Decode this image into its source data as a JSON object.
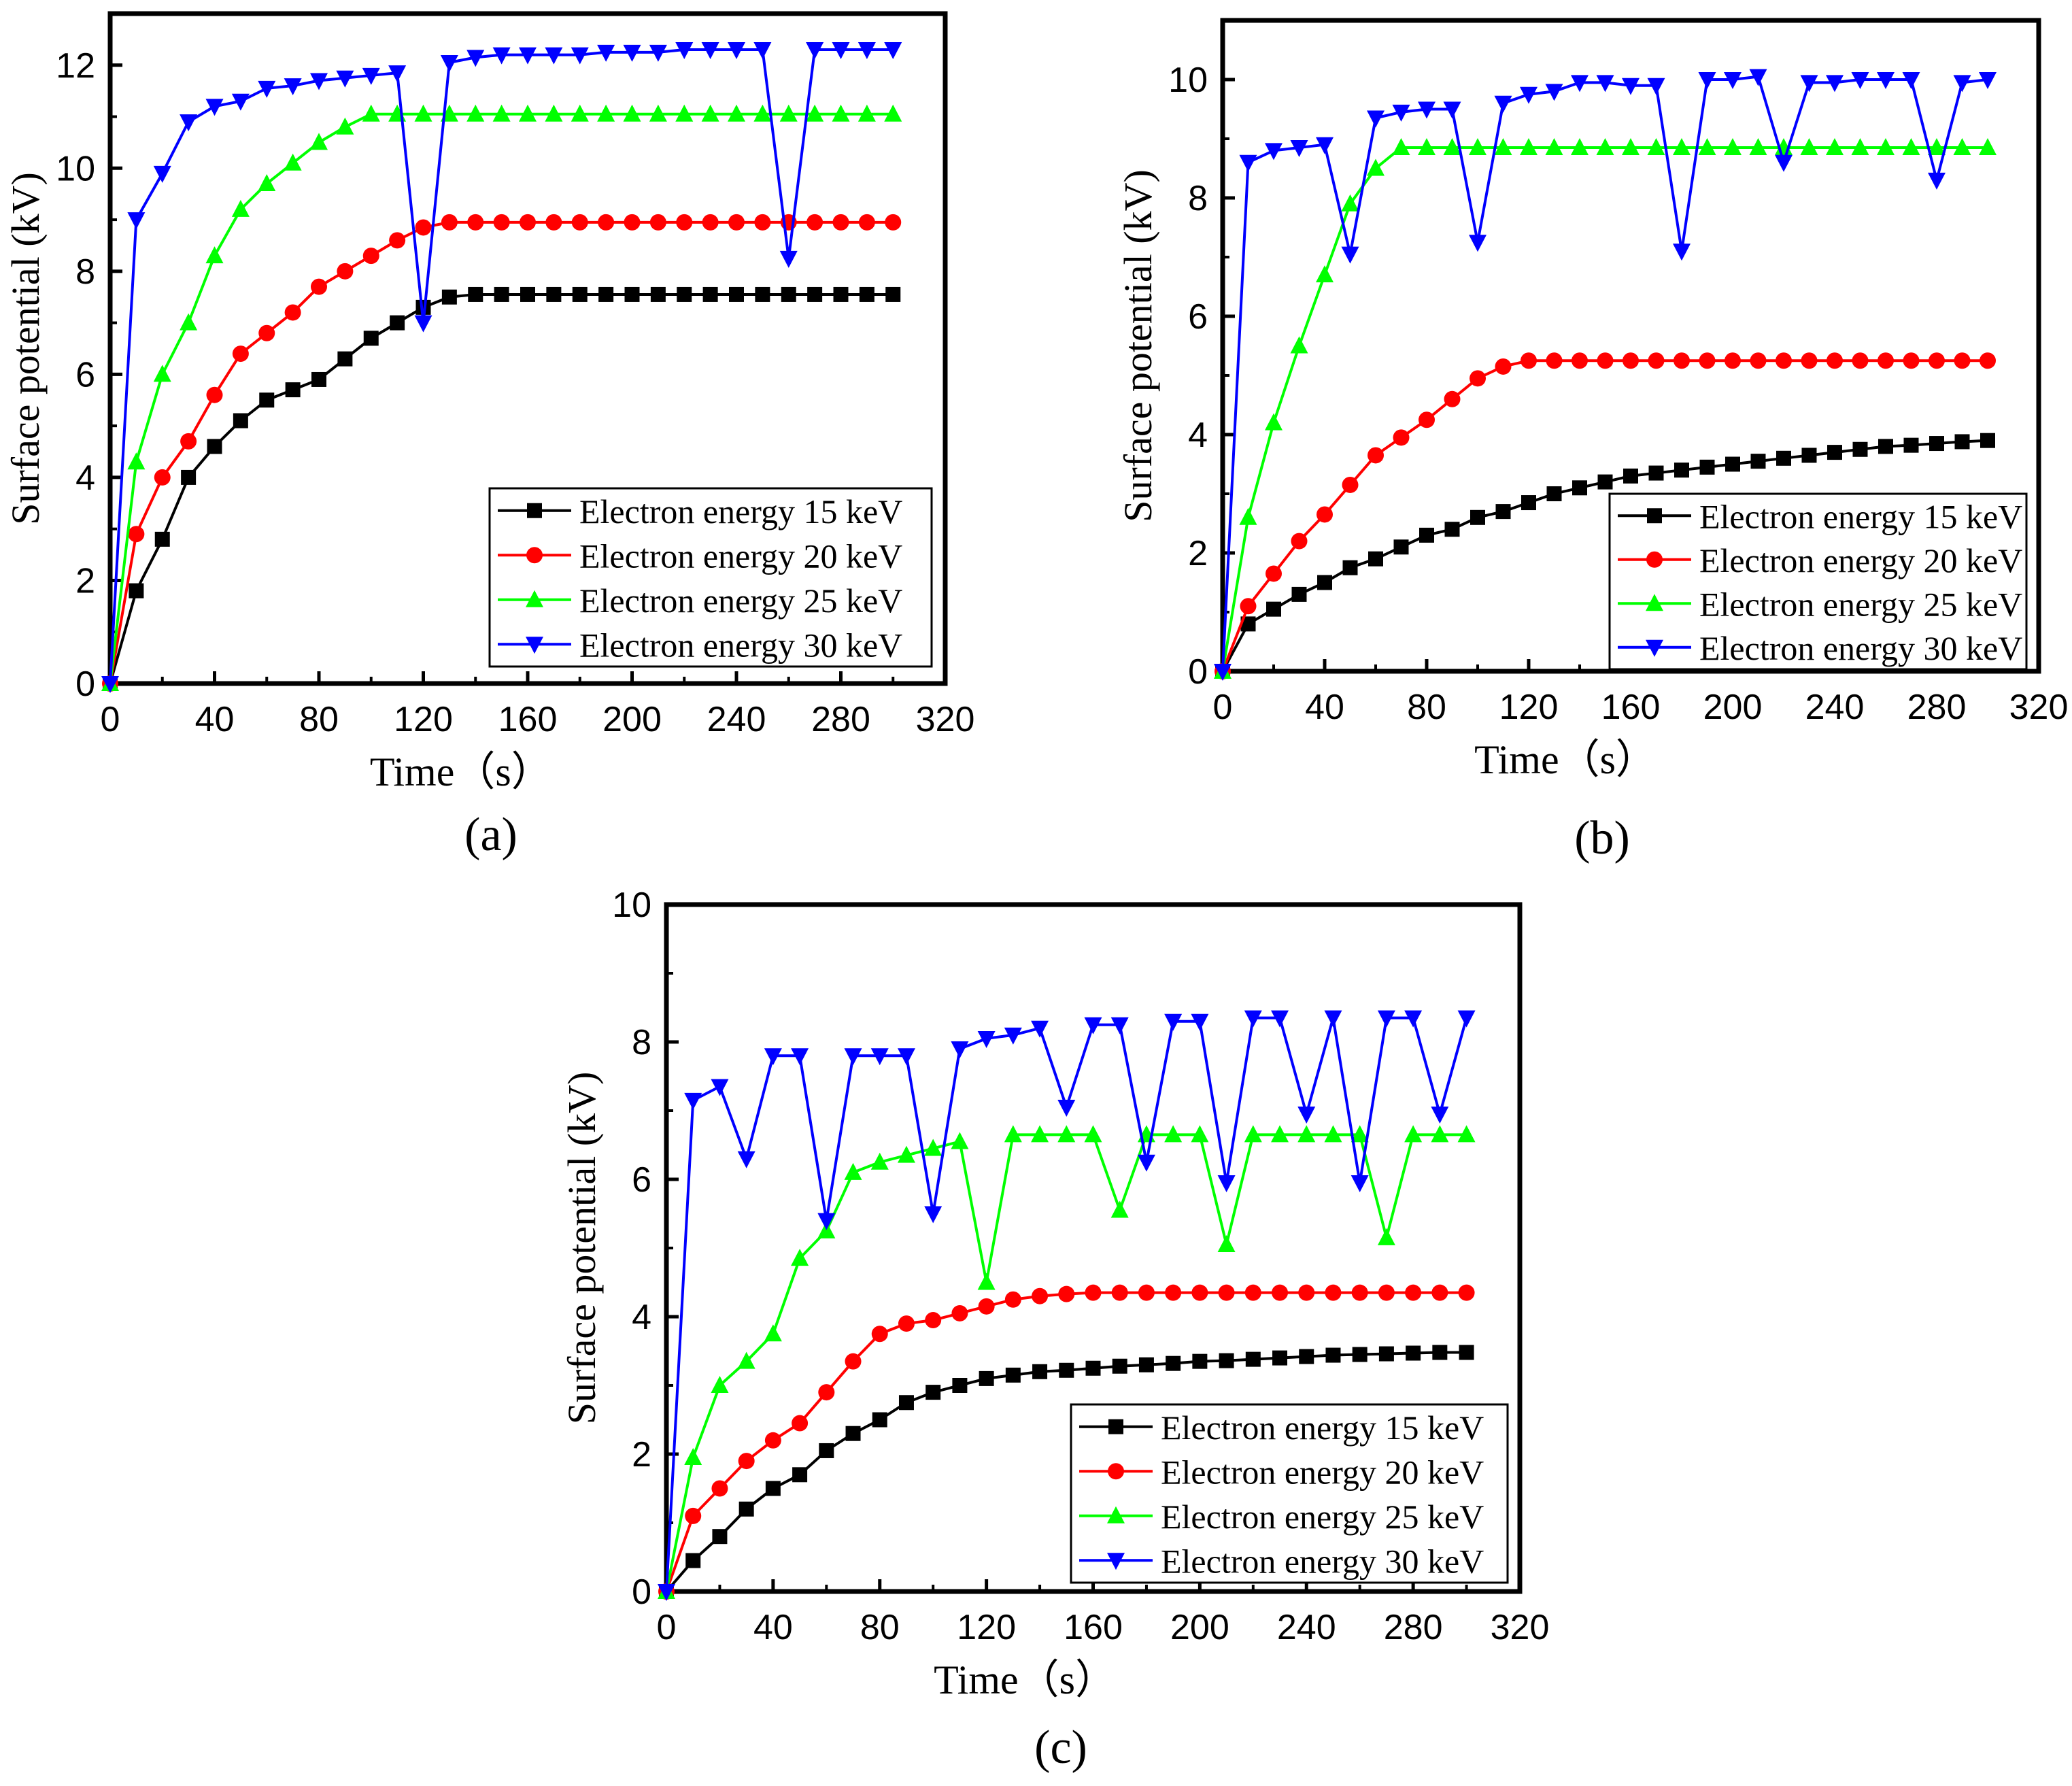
{
  "chart_data": [
    {
      "type": "line",
      "panel_label": "(a)",
      "xlabel": "Time（s）",
      "ylabel": "Surface potential (kV)",
      "xlim": [
        0,
        320
      ],
      "ylim": [
        0,
        13
      ],
      "xticks": [
        "0",
        "40",
        "80",
        "120",
        "160",
        "200",
        "240",
        "280",
        "320"
      ],
      "yticks": [
        "0",
        "2",
        "4",
        "6",
        "8",
        "10",
        "12"
      ],
      "legend_position": "bottom-right",
      "series": [
        {
          "name": "Electron energy  15 keV",
          "color": "#000000",
          "marker": "square",
          "x": [
            0,
            10,
            20,
            30,
            40,
            50,
            60,
            70,
            80,
            90,
            100,
            110,
            120,
            130,
            140,
            150,
            160,
            170,
            180,
            190,
            200,
            210,
            220,
            230,
            240,
            250,
            260,
            270,
            280,
            290,
            300
          ],
          "values": [
            0,
            1.8,
            2.8,
            4.0,
            4.6,
            5.1,
            5.5,
            5.7,
            5.9,
            6.3,
            6.7,
            7.0,
            7.3,
            7.5,
            7.55,
            7.55,
            7.55,
            7.55,
            7.55,
            7.55,
            7.55,
            7.55,
            7.55,
            7.55,
            7.55,
            7.55,
            7.55,
            7.55,
            7.55,
            7.55,
            7.55
          ]
        },
        {
          "name": "Electron energy  20 keV",
          "color": "#ff0000",
          "marker": "circle",
          "x": [
            0,
            10,
            20,
            30,
            40,
            50,
            60,
            70,
            80,
            90,
            100,
            110,
            120,
            130,
            140,
            150,
            160,
            170,
            180,
            190,
            200,
            210,
            220,
            230,
            240,
            250,
            260,
            270,
            280,
            290,
            300
          ],
          "values": [
            0,
            2.9,
            4.0,
            4.7,
            5.6,
            6.4,
            6.8,
            7.2,
            7.7,
            8.0,
            8.3,
            8.6,
            8.85,
            8.95,
            8.95,
            8.95,
            8.95,
            8.95,
            8.95,
            8.95,
            8.95,
            8.95,
            8.95,
            8.95,
            8.95,
            8.95,
            8.95,
            8.95,
            8.95,
            8.95,
            8.95
          ]
        },
        {
          "name": "Electron energy  25 keV",
          "color": "#00ff00",
          "marker": "triangle-up",
          "x": [
            0,
            10,
            20,
            30,
            40,
            50,
            60,
            70,
            80,
            90,
            100,
            110,
            120,
            130,
            140,
            150,
            160,
            170,
            180,
            190,
            200,
            210,
            220,
            230,
            240,
            250,
            260,
            270,
            280,
            290,
            300
          ],
          "values": [
            0,
            4.3,
            6.0,
            7.0,
            8.3,
            9.2,
            9.7,
            10.1,
            10.5,
            10.8,
            11.05,
            11.05,
            11.05,
            11.05,
            11.05,
            11.05,
            11.05,
            11.05,
            11.05,
            11.05,
            11.05,
            11.05,
            11.05,
            11.05,
            11.05,
            11.05,
            11.05,
            11.05,
            11.05,
            11.05,
            11.05
          ]
        },
        {
          "name": "Electron energy  30 keV",
          "color": "#0000ff",
          "marker": "triangle-down",
          "x": [
            0,
            10,
            20,
            30,
            40,
            50,
            60,
            70,
            80,
            90,
            100,
            110,
            120,
            130,
            140,
            150,
            160,
            170,
            180,
            190,
            200,
            210,
            220,
            230,
            240,
            250,
            260,
            270,
            280,
            290,
            300
          ],
          "values": [
            0,
            9.0,
            9.9,
            10.9,
            11.2,
            11.3,
            11.55,
            11.6,
            11.7,
            11.75,
            11.8,
            11.85,
            7.0,
            12.05,
            12.15,
            12.2,
            12.2,
            12.2,
            12.2,
            12.25,
            12.25,
            12.25,
            12.3,
            12.3,
            12.3,
            12.3,
            8.25,
            12.3,
            12.3,
            12.3,
            12.3
          ]
        }
      ]
    },
    {
      "type": "line",
      "panel_label": "(b)",
      "xlabel": "Time（s）",
      "ylabel": "Surface potential (kV)",
      "xlim": [
        0,
        320
      ],
      "ylim": [
        0,
        11
      ],
      "xticks": [
        "0",
        "40",
        "80",
        "120",
        "160",
        "200",
        "240",
        "280",
        "320"
      ],
      "yticks": [
        "0",
        "2",
        "4",
        "6",
        "8",
        "10"
      ],
      "legend_position": "bottom-right",
      "series": [
        {
          "name": "Electron energy 15 keV",
          "color": "#000000",
          "marker": "square",
          "x": [
            0,
            10,
            20,
            30,
            40,
            50,
            60,
            70,
            80,
            90,
            100,
            110,
            120,
            130,
            140,
            150,
            160,
            170,
            180,
            190,
            200,
            210,
            220,
            230,
            240,
            250,
            260,
            270,
            280,
            290,
            300
          ],
          "values": [
            0,
            0.8,
            1.05,
            1.3,
            1.5,
            1.75,
            1.9,
            2.1,
            2.3,
            2.4,
            2.6,
            2.7,
            2.85,
            3.0,
            3.1,
            3.2,
            3.3,
            3.35,
            3.4,
            3.45,
            3.5,
            3.55,
            3.6,
            3.65,
            3.7,
            3.75,
            3.8,
            3.82,
            3.85,
            3.88,
            3.9
          ]
        },
        {
          "name": "Electron energy 20 keV",
          "color": "#ff0000",
          "marker": "circle",
          "x": [
            0,
            10,
            20,
            30,
            40,
            50,
            60,
            70,
            80,
            90,
            100,
            110,
            120,
            130,
            140,
            150,
            160,
            170,
            180,
            190,
            200,
            210,
            220,
            230,
            240,
            250,
            260,
            270,
            280,
            290,
            300
          ],
          "values": [
            0,
            1.1,
            1.65,
            2.2,
            2.65,
            3.15,
            3.65,
            3.95,
            4.25,
            4.6,
            4.95,
            5.15,
            5.25,
            5.25,
            5.25,
            5.25,
            5.25,
            5.25,
            5.25,
            5.25,
            5.25,
            5.25,
            5.25,
            5.25,
            5.25,
            5.25,
            5.25,
            5.25,
            5.25,
            5.25,
            5.25
          ]
        },
        {
          "name": "Electron energy 25 keV",
          "color": "#00ff00",
          "marker": "triangle-up",
          "x": [
            0,
            10,
            20,
            30,
            40,
            50,
            60,
            70,
            80,
            90,
            100,
            110,
            120,
            130,
            140,
            150,
            160,
            170,
            180,
            190,
            200,
            210,
            220,
            230,
            240,
            250,
            260,
            270,
            280,
            290,
            300
          ],
          "values": [
            0,
            2.6,
            4.2,
            5.5,
            6.7,
            7.9,
            8.5,
            8.85,
            8.85,
            8.85,
            8.85,
            8.85,
            8.85,
            8.85,
            8.85,
            8.85,
            8.85,
            8.85,
            8.85,
            8.85,
            8.85,
            8.85,
            8.85,
            8.85,
            8.85,
            8.85,
            8.85,
            8.85,
            8.85,
            8.85,
            8.85
          ]
        },
        {
          "name": "Electron energy 30 keV",
          "color": "#0000ff",
          "marker": "triangle-down",
          "x": [
            0,
            10,
            20,
            30,
            40,
            50,
            60,
            70,
            80,
            90,
            100,
            110,
            120,
            130,
            140,
            150,
            160,
            170,
            180,
            190,
            200,
            210,
            220,
            230,
            240,
            250,
            260,
            270,
            280,
            290,
            300
          ],
          "values": [
            0,
            8.6,
            8.8,
            8.85,
            8.9,
            7.05,
            9.35,
            9.45,
            9.5,
            9.5,
            7.25,
            9.6,
            9.75,
            9.8,
            9.95,
            9.95,
            9.9,
            9.9,
            7.1,
            10.0,
            10.0,
            10.05,
            8.6,
            9.95,
            9.95,
            10.0,
            10.0,
            10.0,
            8.3,
            9.95,
            10.0
          ]
        }
      ]
    },
    {
      "type": "line",
      "panel_label": "(c)",
      "xlabel": "Time（s）",
      "ylabel": "Surface potential (kV)",
      "xlim": [
        0,
        320
      ],
      "ylim": [
        0,
        10
      ],
      "xticks": [
        "0",
        "40",
        "80",
        "120",
        "160",
        "200",
        "240",
        "280",
        "320"
      ],
      "yticks": [
        "0",
        "2",
        "4",
        "6",
        "8",
        "10"
      ],
      "legend_position": "bottom-right",
      "series": [
        {
          "name": "Electron energy 15 keV",
          "color": "#000000",
          "marker": "square",
          "x": [
            0,
            10,
            20,
            30,
            40,
            50,
            60,
            70,
            80,
            90,
            100,
            110,
            120,
            130,
            140,
            150,
            160,
            170,
            180,
            190,
            200,
            210,
            220,
            230,
            240,
            250,
            260,
            270,
            280,
            290,
            300
          ],
          "values": [
            0,
            0.45,
            0.8,
            1.2,
            1.5,
            1.7,
            2.05,
            2.3,
            2.5,
            2.75,
            2.9,
            3.0,
            3.1,
            3.15,
            3.2,
            3.22,
            3.25,
            3.28,
            3.3,
            3.32,
            3.35,
            3.36,
            3.38,
            3.4,
            3.42,
            3.44,
            3.45,
            3.46,
            3.47,
            3.48,
            3.48
          ]
        },
        {
          "name": "Electron energy 20 keV",
          "color": "#ff0000",
          "marker": "circle",
          "x": [
            0,
            10,
            20,
            30,
            40,
            50,
            60,
            70,
            80,
            90,
            100,
            110,
            120,
            130,
            140,
            150,
            160,
            170,
            180,
            190,
            200,
            210,
            220,
            230,
            240,
            250,
            260,
            270,
            280,
            290,
            300
          ],
          "values": [
            0,
            1.1,
            1.5,
            1.9,
            2.2,
            2.45,
            2.9,
            3.35,
            3.75,
            3.9,
            3.95,
            4.05,
            4.15,
            4.25,
            4.3,
            4.33,
            4.35,
            4.35,
            4.35,
            4.35,
            4.35,
            4.35,
            4.35,
            4.35,
            4.35,
            4.35,
            4.35,
            4.35,
            4.35,
            4.35,
            4.35
          ]
        },
        {
          "name": "Electron energy 25 keV",
          "color": "#00ff00",
          "marker": "triangle-up",
          "x": [
            0,
            10,
            20,
            30,
            40,
            50,
            60,
            70,
            80,
            90,
            100,
            110,
            120,
            130,
            140,
            150,
            160,
            170,
            180,
            190,
            200,
            210,
            220,
            230,
            240,
            250,
            260,
            270,
            280,
            290,
            300
          ],
          "values": [
            0,
            1.95,
            3.0,
            3.35,
            3.75,
            4.85,
            5.25,
            6.1,
            6.25,
            6.35,
            6.45,
            6.55,
            4.5,
            6.65,
            6.65,
            6.65,
            6.65,
            5.55,
            6.65,
            6.65,
            6.65,
            5.05,
            6.65,
            6.65,
            6.65,
            6.65,
            6.65,
            5.15,
            6.65,
            6.65,
            6.65
          ]
        },
        {
          "name": "Electron energy 30 keV",
          "color": "#0000ff",
          "marker": "triangle-down",
          "x": [
            0,
            10,
            20,
            30,
            40,
            50,
            60,
            70,
            80,
            90,
            100,
            110,
            120,
            130,
            140,
            150,
            160,
            170,
            180,
            190,
            200,
            210,
            220,
            230,
            240,
            250,
            260,
            270,
            280,
            290,
            300
          ],
          "values": [
            0,
            7.15,
            7.35,
            6.3,
            7.8,
            7.8,
            5.4,
            7.8,
            7.8,
            7.8,
            5.5,
            7.9,
            8.05,
            8.1,
            8.2,
            7.05,
            8.25,
            8.25,
            6.25,
            8.3,
            8.3,
            5.95,
            8.35,
            8.35,
            6.95,
            8.35,
            5.95,
            8.35,
            8.35,
            6.95,
            8.35
          ]
        }
      ]
    }
  ]
}
